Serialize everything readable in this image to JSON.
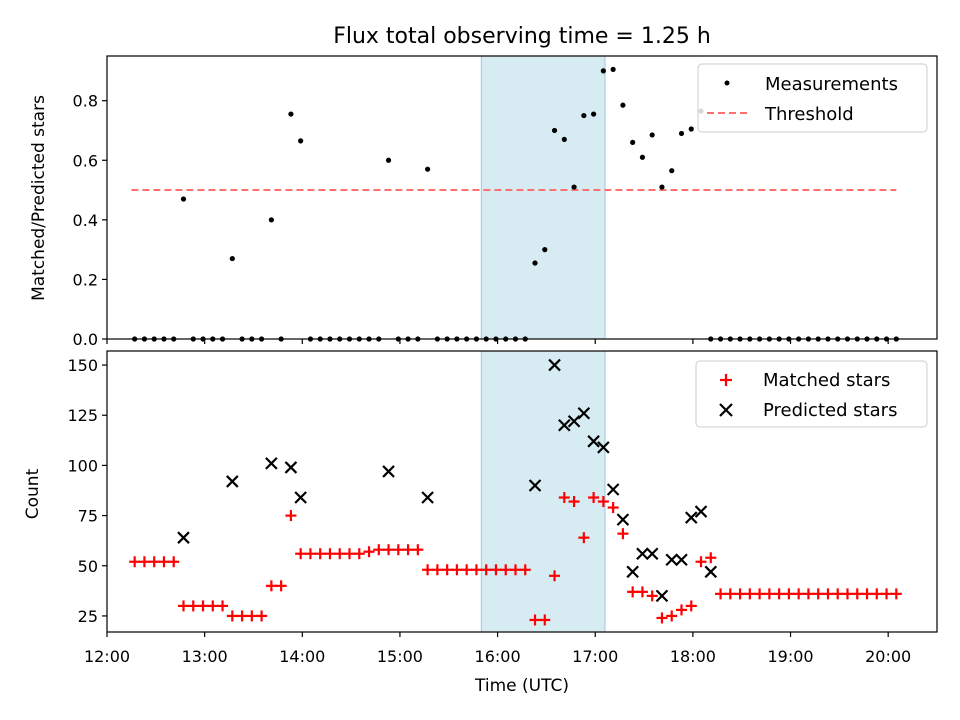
{
  "title": "Flux total observing time = 1.25 h",
  "chart_data": [
    {
      "type": "scatter",
      "ylabel": "Matched/Predicted stars",
      "xlabel": "",
      "ylim": [
        0,
        0.95
      ],
      "yticks": [
        0.0,
        0.2,
        0.4,
        0.6,
        0.8
      ],
      "grid": false,
      "legend_position": "top-right",
      "shaded_interval": [
        "15:50",
        "17:06"
      ],
      "shaded_color": "#add8e6",
      "threshold": {
        "name": "Threshold",
        "value": 0.5,
        "x_start": "12:15",
        "x_end": "20:05",
        "color": "#ff7070",
        "style": "dashed"
      },
      "series": [
        {
          "name": "Measurements",
          "color": "#000000",
          "marker": "dot",
          "points": [
            [
              "12:17",
              0
            ],
            [
              "12:23",
              0
            ],
            [
              "12:29",
              0
            ],
            [
              "12:35",
              0
            ],
            [
              "12:41",
              0
            ],
            [
              "12:47",
              0.47
            ],
            [
              "12:53",
              0
            ],
            [
              "12:59",
              0
            ],
            [
              "13:05",
              0
            ],
            [
              "13:11",
              0
            ],
            [
              "13:17",
              0.27
            ],
            [
              "13:23",
              0
            ],
            [
              "13:29",
              0
            ],
            [
              "13:35",
              0
            ],
            [
              "13:41",
              0.4
            ],
            [
              "13:47",
              0
            ],
            [
              "13:53",
              0.755
            ],
            [
              "13:59",
              0.665
            ],
            [
              "14:05",
              0
            ],
            [
              "14:11",
              0
            ],
            [
              "14:17",
              0
            ],
            [
              "14:23",
              0
            ],
            [
              "14:29",
              0
            ],
            [
              "14:35",
              0
            ],
            [
              "14:41",
              0
            ],
            [
              "14:47",
              0
            ],
            [
              "14:53",
              0.6
            ],
            [
              "14:59",
              0
            ],
            [
              "15:05",
              0
            ],
            [
              "15:11",
              0
            ],
            [
              "15:17",
              0.57
            ],
            [
              "15:23",
              0
            ],
            [
              "15:29",
              0
            ],
            [
              "15:35",
              0
            ],
            [
              "15:41",
              0
            ],
            [
              "15:47",
              0
            ],
            [
              "15:53",
              0
            ],
            [
              "15:59",
              0
            ],
            [
              "16:05",
              0
            ],
            [
              "16:11",
              0
            ],
            [
              "16:17",
              0
            ],
            [
              "16:23",
              0.255
            ],
            [
              "16:29",
              0.3
            ],
            [
              "16:35",
              0.7
            ],
            [
              "16:41",
              0.67
            ],
            [
              "16:47",
              0.51
            ],
            [
              "16:53",
              0.75
            ],
            [
              "16:59",
              0.755
            ],
            [
              "17:05",
              0.9
            ],
            [
              "17:11",
              0.905
            ],
            [
              "17:17",
              0.785
            ],
            [
              "17:23",
              0.66
            ],
            [
              "17:29",
              0.61
            ],
            [
              "17:35",
              0.685
            ],
            [
              "17:41",
              0.51
            ],
            [
              "17:47",
              0.565
            ],
            [
              "17:53",
              0.69
            ],
            [
              "17:59",
              0.705
            ],
            [
              "18:05",
              0.765
            ],
            [
              "18:11",
              0
            ],
            [
              "18:17",
              0
            ],
            [
              "18:23",
              0
            ],
            [
              "18:29",
              0
            ],
            [
              "18:35",
              0
            ],
            [
              "18:41",
              0
            ],
            [
              "18:47",
              0
            ],
            [
              "18:53",
              0
            ],
            [
              "18:59",
              0
            ],
            [
              "19:05",
              0
            ],
            [
              "19:11",
              0
            ],
            [
              "19:17",
              0
            ],
            [
              "19:23",
              0
            ],
            [
              "19:29",
              0
            ],
            [
              "19:35",
              0
            ],
            [
              "19:41",
              0
            ],
            [
              "19:47",
              0
            ],
            [
              "19:53",
              0
            ],
            [
              "19:59",
              0
            ],
            [
              "20:05",
              0
            ]
          ]
        }
      ]
    },
    {
      "type": "scatter",
      "ylabel": "Count",
      "xlabel": "Time (UTC)",
      "xlim": [
        "12:00",
        "20:30"
      ],
      "xticks": [
        "12:00",
        "13:00",
        "14:00",
        "15:00",
        "16:00",
        "17:00",
        "18:00",
        "19:00",
        "20:00"
      ],
      "ylim": [
        17,
        157
      ],
      "yticks": [
        25,
        50,
        75,
        100,
        125,
        150
      ],
      "grid": false,
      "legend_position": "top-right",
      "shaded_interval": [
        "15:50",
        "17:06"
      ],
      "shaded_color": "#add8e6",
      "series": [
        {
          "name": "Matched stars",
          "color": "#ff0000",
          "marker": "plus",
          "points": [
            [
              "12:17",
              52
            ],
            [
              "12:23",
              52
            ],
            [
              "12:29",
              52
            ],
            [
              "12:35",
              52
            ],
            [
              "12:41",
              52
            ],
            [
              "12:47",
              30
            ],
            [
              "12:53",
              30
            ],
            [
              "12:59",
              30
            ],
            [
              "13:05",
              30
            ],
            [
              "13:11",
              30
            ],
            [
              "13:17",
              25
            ],
            [
              "13:23",
              25
            ],
            [
              "13:29",
              25
            ],
            [
              "13:35",
              25
            ],
            [
              "13:41",
              40
            ],
            [
              "13:47",
              40
            ],
            [
              "13:53",
              75
            ],
            [
              "13:59",
              56
            ],
            [
              "14:05",
              56
            ],
            [
              "14:11",
              56
            ],
            [
              "14:17",
              56
            ],
            [
              "14:23",
              56
            ],
            [
              "14:29",
              56
            ],
            [
              "14:35",
              56
            ],
            [
              "14:41",
              57
            ],
            [
              "14:47",
              58
            ],
            [
              "14:53",
              58
            ],
            [
              "14:59",
              58
            ],
            [
              "15:05",
              58
            ],
            [
              "15:11",
              58
            ],
            [
              "15:17",
              48
            ],
            [
              "15:23",
              48
            ],
            [
              "15:29",
              48
            ],
            [
              "15:35",
              48
            ],
            [
              "15:41",
              48
            ],
            [
              "15:47",
              48
            ],
            [
              "15:53",
              48
            ],
            [
              "15:59",
              48
            ],
            [
              "16:05",
              48
            ],
            [
              "16:11",
              48
            ],
            [
              "16:17",
              48
            ],
            [
              "16:23",
              23
            ],
            [
              "16:29",
              23
            ],
            [
              "16:35",
              45
            ],
            [
              "16:41",
              84
            ],
            [
              "16:47",
              82
            ],
            [
              "16:53",
              64
            ],
            [
              "16:59",
              84
            ],
            [
              "17:05",
              82
            ],
            [
              "17:11",
              79
            ],
            [
              "17:17",
              66
            ],
            [
              "17:23",
              37
            ],
            [
              "17:29",
              37
            ],
            [
              "17:35",
              35
            ],
            [
              "17:41",
              24
            ],
            [
              "17:47",
              25
            ],
            [
              "17:53",
              28
            ],
            [
              "17:59",
              30
            ],
            [
              "18:05",
              52
            ],
            [
              "18:11",
              54
            ],
            [
              "18:17",
              36
            ],
            [
              "18:23",
              36
            ],
            [
              "18:29",
              36
            ],
            [
              "18:35",
              36
            ],
            [
              "18:41",
              36
            ],
            [
              "18:47",
              36
            ],
            [
              "18:53",
              36
            ],
            [
              "18:59",
              36
            ],
            [
              "19:05",
              36
            ],
            [
              "19:11",
              36
            ],
            [
              "19:17",
              36
            ],
            [
              "19:23",
              36
            ],
            [
              "19:29",
              36
            ],
            [
              "19:35",
              36
            ],
            [
              "19:41",
              36
            ],
            [
              "19:47",
              36
            ],
            [
              "19:53",
              36
            ],
            [
              "19:59",
              36
            ],
            [
              "20:05",
              36
            ]
          ]
        },
        {
          "name": "Predicted stars",
          "color": "#000000",
          "marker": "x",
          "points": [
            [
              "12:47",
              64
            ],
            [
              "13:17",
              92
            ],
            [
              "13:41",
              101
            ],
            [
              "13:53",
              99
            ],
            [
              "13:59",
              84
            ],
            [
              "14:53",
              97
            ],
            [
              "15:17",
              84
            ],
            [
              "16:23",
              90
            ],
            [
              "16:35",
              150
            ],
            [
              "16:41",
              120
            ],
            [
              "16:47",
              122
            ],
            [
              "16:53",
              126
            ],
            [
              "16:59",
              112
            ],
            [
              "17:05",
              109
            ],
            [
              "17:11",
              88
            ],
            [
              "17:17",
              73
            ],
            [
              "17:23",
              47
            ],
            [
              "17:29",
              56
            ],
            [
              "17:35",
              56
            ],
            [
              "17:41",
              35
            ],
            [
              "17:47",
              53
            ],
            [
              "17:53",
              53
            ],
            [
              "17:59",
              74
            ],
            [
              "18:05",
              77
            ],
            [
              "18:11",
              47
            ]
          ]
        }
      ]
    }
  ]
}
